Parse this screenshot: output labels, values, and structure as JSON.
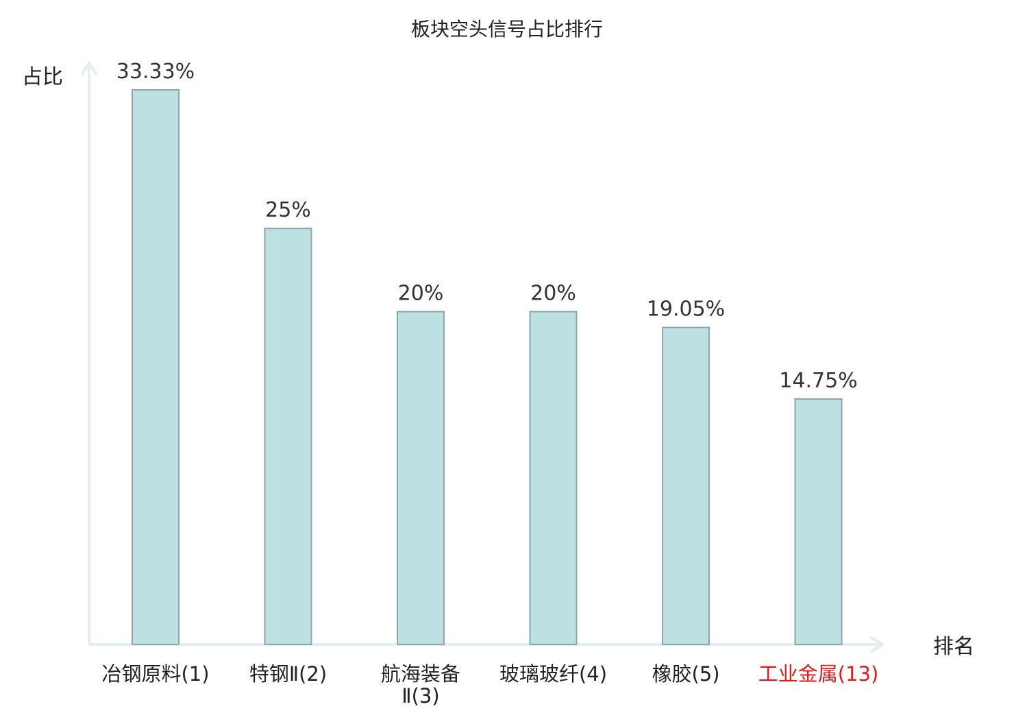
{
  "chart_data": {
    "type": "bar",
    "title": "板块空头信号占比排行",
    "xlabel": "排名",
    "ylabel": "占比",
    "ylim": [
      0,
      35
    ],
    "grid": false,
    "legend": "none",
    "categories": [
      "冶钢原料(1)",
      "特钢Ⅱ(2)",
      "航海装备Ⅱ(3)",
      "玻璃玻纤(4)",
      "橡胶(5)",
      "工业金属(13)"
    ],
    "category_lines": [
      [
        "冶钢原料(1)"
      ],
      [
        "特钢Ⅱ(2)"
      ],
      [
        "航海装备",
        "Ⅱ(3)"
      ],
      [
        "玻璃玻纤(4)"
      ],
      [
        "橡胶(5)"
      ],
      [
        "工业金属(13)"
      ]
    ],
    "values": [
      33.33,
      25,
      20,
      20,
      19.05,
      14.75
    ],
    "value_labels": [
      "33.33%",
      "25%",
      "20%",
      "20%",
      "19.05%",
      "14.75%"
    ],
    "highlight_index": 5,
    "colors": {
      "bar_fill": "#bde0e3",
      "bar_stroke": "#8aa8ab",
      "axis": "#dff0ee",
      "highlight_text": "#e31a1c",
      "text": "#222222"
    }
  }
}
